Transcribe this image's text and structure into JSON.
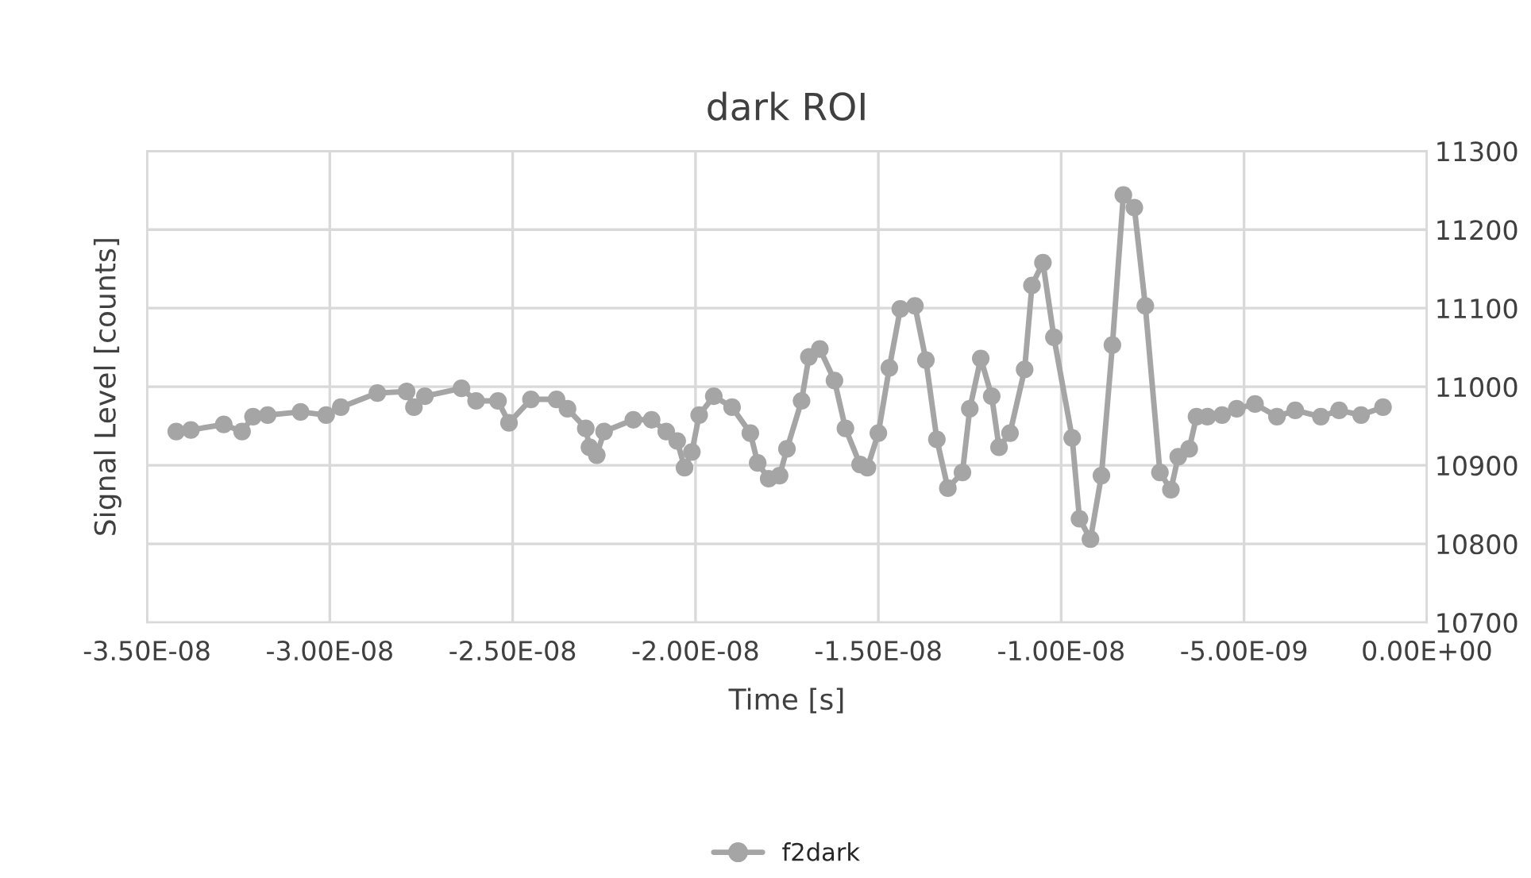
{
  "chart_data": {
    "type": "line",
    "title": "dark ROI",
    "xlabel": "Time [s]",
    "ylabel": "Signal Level [counts]",
    "x": [
      -3.42e-08,
      -3.38e-08,
      -3.29e-08,
      -3.24e-08,
      -3.21e-08,
      -3.17e-08,
      -3.08e-08,
      -3.01e-08,
      -2.97e-08,
      -2.87e-08,
      -2.79e-08,
      -2.77e-08,
      -2.74e-08,
      -2.64e-08,
      -2.6e-08,
      -2.54e-08,
      -2.51e-08,
      -2.45e-08,
      -2.38e-08,
      -2.35e-08,
      -2.3e-08,
      -2.29e-08,
      -2.27e-08,
      -2.25e-08,
      -2.17e-08,
      -2.12e-08,
      -2.08e-08,
      -2.05e-08,
      -2.03e-08,
      -2.01e-08,
      -1.99e-08,
      -1.95e-08,
      -1.9e-08,
      -1.85e-08,
      -1.83e-08,
      -1.8e-08,
      -1.77e-08,
      -1.75e-08,
      -1.71e-08,
      -1.69e-08,
      -1.66e-08,
      -1.62e-08,
      -1.59e-08,
      -1.55e-08,
      -1.53e-08,
      -1.5e-08,
      -1.47e-08,
      -1.44e-08,
      -1.4e-08,
      -1.37e-08,
      -1.34e-08,
      -1.31e-08,
      -1.27e-08,
      -1.25e-08,
      -1.22e-08,
      -1.19e-08,
      -1.17e-08,
      -1.14e-08,
      -1.1e-08,
      -1.08e-08,
      -1.05e-08,
      -1.02e-08,
      -9.7e-09,
      -9.5e-09,
      -9.2e-09,
      -8.9e-09,
      -8.6e-09,
      -8.3e-09,
      -8e-09,
      -7.7e-09,
      -7.3e-09,
      -7e-09,
      -6.8e-09,
      -6.5e-09,
      -6.3e-09,
      -6e-09,
      -5.6e-09,
      -5.2e-09,
      -4.7e-09,
      -4.1e-09,
      -3.6e-09,
      -2.9e-09,
      -2.4e-09,
      -1.8e-09,
      -1.2e-09
    ],
    "series": [
      {
        "name": "f2dark",
        "color": "#a5a5a5",
        "values": [
          10943,
          10945,
          10952,
          10943,
          10962,
          10964,
          10968,
          10964,
          10974,
          10992,
          10994,
          10974,
          10988,
          10998,
          10982,
          10982,
          10954,
          10984,
          10984,
          10972,
          10947,
          10923,
          10913,
          10943,
          10958,
          10958,
          10943,
          10931,
          10897,
          10917,
          10964,
          10988,
          10974,
          10941,
          10903,
          10883,
          10887,
          10921,
          10982,
          11038,
          11048,
          11008,
          10947,
          10901,
          10897,
          10941,
          11024,
          11099,
          11103,
          11034,
          10933,
          10871,
          10891,
          10972,
          11036,
          10988,
          10923,
          10941,
          11022,
          11129,
          11158,
          11063,
          10935,
          10832,
          10806,
          10887,
          11053,
          11244,
          11228,
          11103,
          10891,
          10869,
          10911,
          10921,
          10962,
          10962,
          10964,
          10972,
          10978,
          10962,
          10970,
          10962,
          10970,
          10964,
          10974
        ]
      }
    ],
    "xlim": [
      -3.5e-08,
      0
    ],
    "xticks": [
      {
        "value": -3.5e-08,
        "label": "-3.50E-08"
      },
      {
        "value": -3e-08,
        "label": "-3.00E-08"
      },
      {
        "value": -2.5e-08,
        "label": "-2.50E-08"
      },
      {
        "value": -2e-08,
        "label": "-2.00E-08"
      },
      {
        "value": -1.5e-08,
        "label": "-1.50E-08"
      },
      {
        "value": -1e-08,
        "label": "-1.00E-08"
      },
      {
        "value": -5e-09,
        "label": "-5.00E-09"
      },
      {
        "value": 0,
        "label": "0.00E+00"
      }
    ],
    "ylim": [
      10700,
      11300
    ],
    "yticks": [
      10700,
      10800,
      10900,
      11000,
      11100,
      11200,
      11300
    ],
    "grid": true,
    "legend": "bottom",
    "marker": "circle",
    "line_style": "solid"
  }
}
